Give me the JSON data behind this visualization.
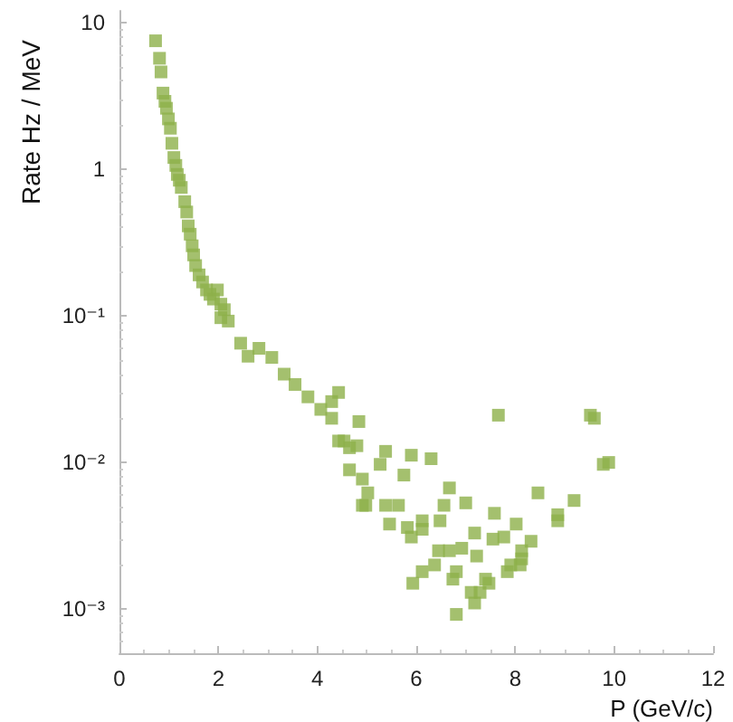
{
  "chart_data": {
    "type": "scatter",
    "xlabel": "P (GeV/c)",
    "ylabel": "Rate Hz / MeV",
    "log": "y",
    "marker": "square",
    "grid": false,
    "xlim": [
      0,
      12
    ],
    "xticks": [
      0,
      2,
      4,
      6,
      8,
      10,
      12
    ],
    "ylim": [
      0.0005,
      12
    ],
    "yticks": [
      {
        "value": 0.001,
        "label": "10⁻³"
      },
      {
        "value": 0.01,
        "label": "10⁻²"
      },
      {
        "value": 0.1,
        "label": "10⁻¹"
      },
      {
        "value": 1,
        "label": "1"
      },
      {
        "value": 10,
        "label": "10"
      }
    ],
    "series": [
      {
        "color": "#8db04a",
        "x": [
          0.73,
          0.81,
          0.84,
          0.88,
          0.92,
          0.95,
          0.99,
          1.03,
          1.06,
          1.1,
          1.14,
          1.17,
          1.21,
          1.25,
          1.32,
          1.36,
          1.39,
          1.43,
          1.47,
          1.5,
          1.54,
          1.61,
          1.68,
          1.76,
          1.83,
          1.98,
          1.9,
          2.05,
          2.12,
          2.05,
          2.2,
          2.45,
          2.6,
          2.82,
          3.08,
          3.33,
          3.55,
          3.81,
          4.07,
          4.43,
          4.29,
          4.54,
          4.8,
          4.65,
          4.91,
          4.29,
          4.84,
          4.43,
          4.65,
          5.38,
          5.9,
          6.3,
          4.91,
          5.27,
          5.75,
          5.02,
          4.98,
          5.38,
          5.64,
          5.46,
          5.82,
          6.12,
          6.48,
          6.56,
          6.67,
          7.0,
          7.66,
          7.58,
          8.46,
          5.9,
          6.12,
          7.18,
          7.55,
          7.77,
          8.02,
          8.32,
          6.45,
          6.67,
          6.92,
          7.22,
          8.13,
          8.1,
          6.37,
          6.12,
          5.93,
          6.81,
          6.74,
          7.4,
          7.84,
          7.91,
          8.13,
          7.11,
          7.18,
          7.29,
          7.47,
          6.81,
          8.86,
          8.86,
          9.19,
          9.52,
          9.6,
          9.78,
          9.89
        ],
        "values": [
          7.5,
          5.7,
          4.6,
          3.3,
          2.9,
          2.6,
          2.2,
          1.9,
          1.5,
          1.2,
          1.06,
          0.92,
          0.84,
          0.75,
          0.6,
          0.51,
          0.41,
          0.36,
          0.3,
          0.26,
          0.22,
          0.19,
          0.17,
          0.15,
          0.14,
          0.15,
          0.13,
          0.12,
          0.11,
          0.097,
          0.092,
          0.065,
          0.053,
          0.06,
          0.052,
          0.04,
          0.034,
          0.028,
          0.023,
          0.03,
          0.02,
          0.014,
          0.013,
          0.0089,
          0.0051,
          0.026,
          0.019,
          0.014,
          0.0126,
          0.0119,
          0.0112,
          0.0106,
          0.0077,
          0.0097,
          0.0082,
          0.0062,
          0.0051,
          0.0051,
          0.0051,
          0.0038,
          0.0036,
          0.004,
          0.004,
          0.0051,
          0.0067,
          0.0053,
          0.021,
          0.0045,
          0.0062,
          0.0031,
          0.0035,
          0.0033,
          0.003,
          0.0031,
          0.0038,
          0.0029,
          0.0025,
          0.0025,
          0.0026,
          0.0023,
          0.0025,
          0.002,
          0.002,
          0.0018,
          0.0015,
          0.0018,
          0.0016,
          0.0016,
          0.0018,
          0.002,
          0.0022,
          0.0013,
          0.0011,
          0.0013,
          0.0015,
          0.00092,
          0.0044,
          0.004,
          0.0055,
          0.021,
          0.02,
          0.0097,
          0.01
        ]
      }
    ]
  }
}
